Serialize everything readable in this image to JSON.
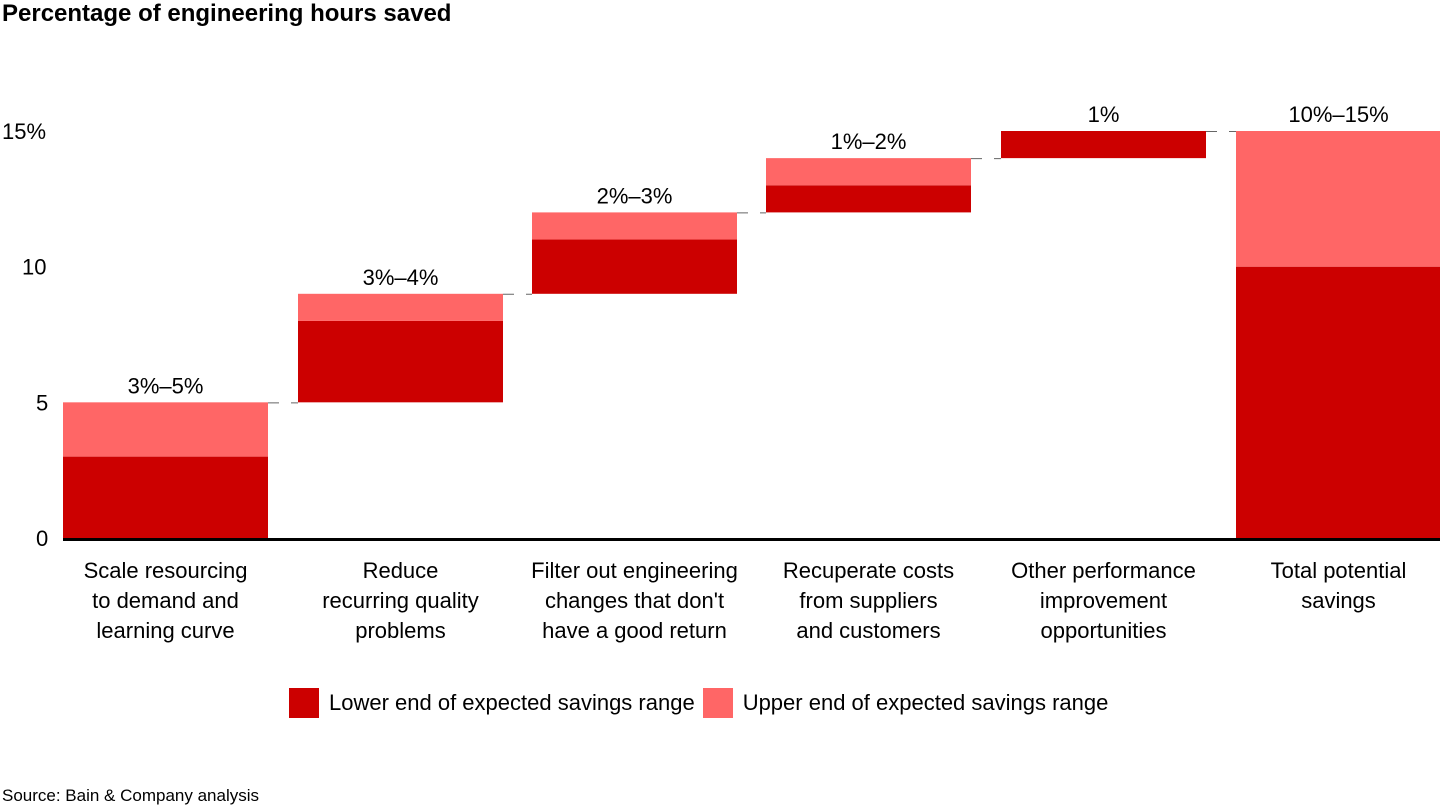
{
  "chart_data": {
    "type": "bar",
    "subtype": "waterfall-range",
    "title": "Percentage of engineering hours saved",
    "xlabel": "",
    "ylabel": "",
    "ylim": [
      0,
      15
    ],
    "yticks": [
      {
        "value": 0,
        "label": "0"
      },
      {
        "value": 5,
        "label": "5"
      },
      {
        "value": 10,
        "label": "10"
      },
      {
        "value": 15,
        "label": "15%"
      }
    ],
    "grid": false,
    "categories": [
      "Scale resourcing\nto demand and\nlearning curve",
      "Reduce\nrecurring quality\nproblems",
      "Filter out engineering\nchanges that don't\nhave a good return",
      "Recuperate costs\nfrom suppliers\nand customers",
      "Other performance\nimprovement\nopportunities",
      "Total potential\nsavings"
    ],
    "base": [
      0,
      5,
      9,
      12,
      14,
      0
    ],
    "series": [
      {
        "name": "Lower end of expected savings range",
        "values": [
          3,
          3,
          2,
          1,
          1,
          10
        ],
        "color": "#cc0000"
      },
      {
        "name": "Upper end of expected savings range",
        "values": [
          2,
          1,
          1,
          1,
          0,
          5
        ],
        "color": "#ff6666"
      }
    ],
    "data_labels": [
      "3%–5%",
      "3%–4%",
      "2%–3%",
      "1%–2%",
      "1%",
      "10%–15%"
    ],
    "legend_position": "bottom"
  },
  "source": "Source: Bain & Company analysis"
}
